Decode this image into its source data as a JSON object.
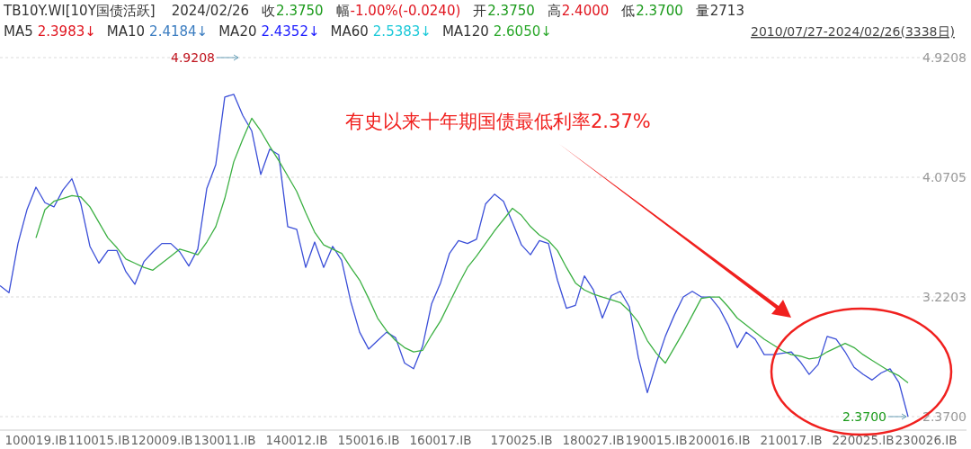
{
  "chart_data": {
    "type": "line",
    "title": "TB10Y.WI[10Y国债活跃]",
    "annotations": [
      "2024/02/26",
      "收",
      "2.3750",
      "幅",
      "-1.00%(-0.0240)",
      "开",
      "2.3750",
      "高",
      "2.4000",
      "低",
      "2.3700",
      "量",
      "2713",
      "MA5",
      "2.3983↓",
      "MA10",
      "2.4184↓",
      "MA20",
      "2.4352↓",
      "MA60",
      "2.5383↓",
      "MA120",
      "2.6050↓",
      "2010/07/27-2024/02/26(3338日)",
      "4.9208",
      "2.3700",
      "有史以来十年期国债最低利率2.37%"
    ],
    "categories": [
      null,
      null,
      null,
      null,
      "100019.IB",
      null,
      null,
      null,
      null,
      null,
      null,
      "110015.IB",
      null,
      null,
      null,
      null,
      null,
      null,
      "120009.IB",
      null,
      null,
      null,
      null,
      null,
      null,
      "130011.IB",
      null,
      null,
      null,
      null,
      null,
      null,
      null,
      "140012.IB",
      null,
      null,
      null,
      null,
      null,
      null,
      null,
      "150016.IB",
      null,
      null,
      null,
      null,
      null,
      null,
      null,
      "160017.IB",
      null,
      null,
      null,
      null,
      null,
      null,
      null,
      null,
      "170025.IB",
      null,
      null,
      null,
      null,
      null,
      null,
      null,
      "180027.IB",
      null,
      null,
      null,
      null,
      null,
      null,
      "190015.IB",
      null,
      null,
      null,
      null,
      null,
      null,
      "200016.IB",
      null,
      null,
      null,
      null,
      null,
      null,
      null,
      "210017.IB",
      null,
      null,
      null,
      null,
      null,
      null,
      null,
      "220025.IB",
      null,
      null,
      null,
      null,
      null,
      null,
      "230026.IB",
      null,
      null,
      null,
      null
    ],
    "series": [
      {
        "color": "#3b4fd8",
        "values": [
          3.3,
          3.25,
          3.6,
          3.84,
          4.0,
          3.89,
          3.86,
          3.98,
          4.06,
          3.88,
          3.58,
          3.46,
          3.55,
          3.55,
          3.4,
          3.31,
          3.47,
          3.54,
          3.6,
          3.6,
          3.54,
          3.44,
          3.56,
          3.99,
          4.16,
          4.64,
          4.66,
          4.51,
          4.4,
          4.09,
          4.27,
          4.23,
          3.72,
          3.7,
          3.43,
          3.61,
          3.43,
          3.58,
          3.48,
          3.19,
          2.97,
          2.85,
          2.91,
          2.97,
          2.93,
          2.75,
          2.71,
          2.87,
          3.17,
          3.32,
          3.53,
          3.62,
          3.6,
          3.63,
          3.88,
          3.95,
          3.9,
          3.75,
          3.59,
          3.52,
          3.62,
          3.6,
          3.34,
          3.14,
          3.16,
          3.37,
          3.27,
          3.07,
          3.23,
          3.26,
          3.15,
          2.79,
          2.54,
          2.75,
          2.94,
          3.09,
          3.22,
          3.26,
          3.22,
          3.22,
          3.14,
          3.02,
          2.86,
          2.97,
          2.92,
          2.81,
          2.81,
          2.82,
          2.83,
          2.76,
          2.67,
          2.74,
          2.94,
          2.92,
          2.83,
          2.72,
          2.67,
          2.63,
          2.68,
          2.71,
          2.61,
          2.37,
          null,
          null,
          null,
          null,
          null,
          null
        ]
      },
      {
        "color": "#3cb043",
        "values": [
          null,
          null,
          null,
          null,
          3.64,
          3.84,
          3.9,
          3.92,
          3.94,
          3.93,
          3.86,
          3.75,
          3.64,
          3.57,
          3.49,
          3.46,
          3.43,
          3.41,
          3.46,
          3.51,
          3.56,
          3.54,
          3.52,
          3.61,
          3.72,
          3.92,
          4.18,
          4.34,
          4.49,
          4.4,
          4.29,
          4.19,
          4.08,
          3.97,
          3.82,
          3.68,
          3.59,
          3.56,
          3.53,
          3.43,
          3.34,
          3.21,
          3.07,
          2.98,
          2.91,
          2.86,
          2.83,
          2.84,
          2.95,
          3.05,
          3.18,
          3.31,
          3.43,
          3.51,
          3.6,
          3.69,
          3.77,
          3.85,
          3.8,
          3.72,
          3.66,
          3.62,
          3.55,
          3.43,
          3.32,
          3.27,
          3.24,
          3.22,
          3.2,
          3.18,
          3.12,
          3.04,
          2.91,
          2.82,
          2.75,
          2.86,
          2.97,
          3.09,
          3.21,
          3.22,
          3.22,
          3.15,
          3.07,
          3.02,
          2.97,
          2.92,
          2.88,
          2.84,
          2.81,
          2.8,
          2.78,
          2.79,
          2.83,
          2.86,
          2.89,
          2.86,
          2.81,
          2.77,
          2.73,
          2.69,
          2.66,
          2.61,
          null,
          null,
          null,
          null,
          null,
          null
        ]
      }
    ],
    "ylim": [
      2.37,
      4.9208
    ],
    "yticks": [
      {
        "value": 2.37,
        "label": "2.3700"
      },
      {
        "value": 3.2203,
        "label": "3.2203"
      },
      {
        "value": 4.0705,
        "label": "4.0705"
      },
      {
        "value": 4.9208,
        "label": "4.9208"
      }
    ],
    "grid": "y"
  }
}
